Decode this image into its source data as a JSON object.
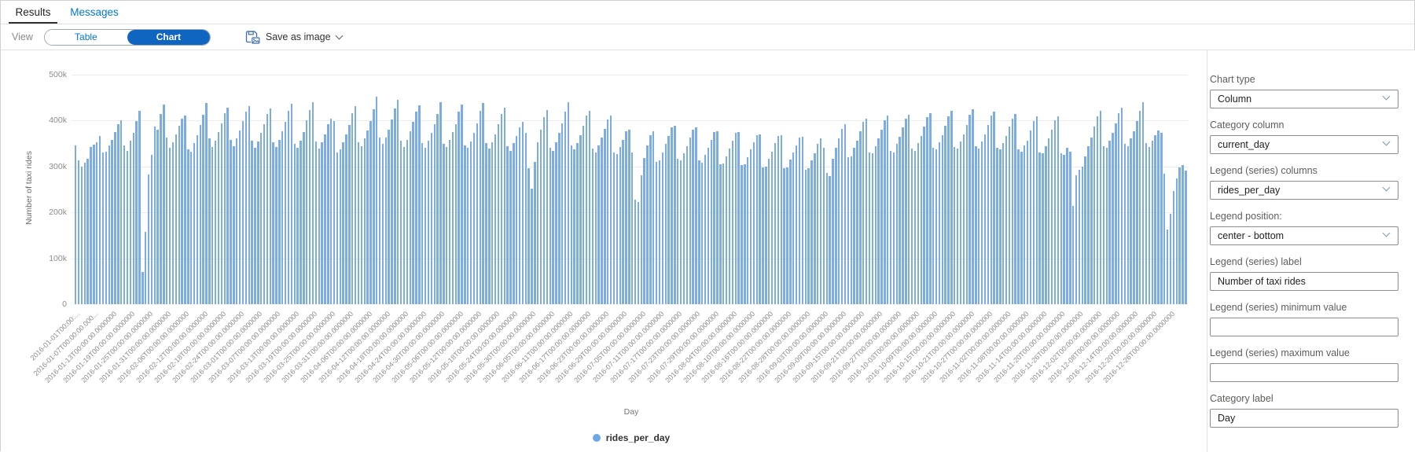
{
  "tabs": {
    "results": "Results",
    "messages": "Messages"
  },
  "toolbar": {
    "view_label": "View",
    "table_label": "Table",
    "chart_label": "Chart",
    "save_as_image_label": "Save as image",
    "icons": {
      "save_image": "save-image-icon",
      "dropdown": "chevron-down-icon"
    },
    "active_view": "Chart",
    "accent_color": "#0078d4",
    "selected_pill_color": "#1065c0"
  },
  "panel": {
    "fields": [
      {
        "label": "Chart type",
        "type": "dropdown",
        "value": "Column"
      },
      {
        "label": "Category column",
        "type": "dropdown",
        "value": "current_day"
      },
      {
        "label": "Legend (series) columns",
        "type": "dropdown",
        "value": "rides_per_day"
      },
      {
        "label": "Legend position:",
        "type": "dropdown",
        "value": "center - bottom"
      },
      {
        "label": "Legend (series) label",
        "type": "input",
        "value": "Number of taxi rides"
      },
      {
        "label": "Legend (series) minimum value",
        "type": "input",
        "value": ""
      },
      {
        "label": "Legend (series) maximum value",
        "type": "input",
        "value": ""
      },
      {
        "label": "Category label",
        "type": "input",
        "value": "Day"
      }
    ]
  },
  "chart_data": {
    "type": "bar",
    "title": "",
    "xlabel": "Day",
    "ylabel": "Number of taxi rides",
    "series_name": "rides_per_day",
    "bar_color": "#7cace4",
    "grid": true,
    "ylim": [
      0,
      500000
    ],
    "y_tick_labels": [
      "0",
      "100k",
      "200k",
      "300k",
      "400k",
      "500k"
    ],
    "x_start_date": "2016-01-01",
    "x_end_date": "2016-12-31",
    "x_tick_interval_days": 6,
    "x_tick_labels": [
      "2016-01-01T00:00:...",
      "2016-01-07T00:00:00.000...",
      "2016-01-13T00:00:00.0000000",
      "2016-01-19T00:00:00.0000000",
      "2016-01-25T00:00:00.0000000",
      "2016-01-31T00:00:00.0000000",
      "2016-02-06T00:00:00.0000000",
      "2016-02-12T00:00:00.0000000",
      "2016-02-18T00:00:00.0000000",
      "2016-02-24T00:00:00.0000000",
      "2016-03-01T00:00:00.0000000",
      "2016-03-07T00:00:00.0000000",
      "2016-03-13T00:00:00.0000000",
      "2016-03-19T00:00:00.0000000",
      "2016-03-25T00:00:00.0000000",
      "2016-03-31T00:00:00.0000000",
      "2016-04-06T00:00:00.0000000",
      "2016-04-12T00:00:00.0000000",
      "2016-04-18T00:00:00.0000000",
      "2016-04-24T00:00:00.0000000",
      "2016-04-30T00:00:00.0000000",
      "2016-05-06T00:00:00.0000000",
      "2016-05-12T00:00:00.0000000",
      "2016-05-18T00:00:00.0000000",
      "2016-05-24T00:00:00.0000000",
      "2016-05-30T00:00:00.0000000",
      "2016-06-05T00:00:00.0000000",
      "2016-06-11T00:00:00.0000000",
      "2016-06-17T00:00:00.0000000",
      "2016-06-23T00:00:00.0000000",
      "2016-06-29T00:00:00.0000000",
      "2016-07-05T00:00:00.0000000",
      "2016-07-11T00:00:00.0000000",
      "2016-07-17T00:00:00.0000000",
      "2016-07-23T00:00:00.0000000",
      "2016-07-29T00:00:00.0000000",
      "2016-08-04T00:00:00.0000000",
      "2016-08-10T00:00:00.0000000",
      "2016-08-16T00:00:00.0000000",
      "2016-08-22T00:00:00.0000000",
      "2016-08-28T00:00:00.0000000",
      "2016-09-03T00:00:00.0000000",
      "2016-09-09T00:00:00.0000000",
      "2016-09-15T00:00:00.0000000",
      "2016-09-21T00:00:00.0000000",
      "2016-09-27T00:00:00.0000000",
      "2016-10-03T00:00:00.0000000",
      "2016-10-09T00:00:00.0000000",
      "2016-10-15T00:00:00.0000000",
      "2016-10-21T00:00:00.0000000",
      "2016-10-27T00:00:00.0000000",
      "2016-11-02T00:00:00.0000000",
      "2016-11-08T00:00:00.0000000",
      "2016-11-14T00:00:00.0000000",
      "2016-11-20T00:00:00.0000000",
      "2016-11-26T00:00:00.0000000",
      "2016-12-02T00:00:00.0000000",
      "2016-12-08T00:00:00.0000000",
      "2016-12-14T00:00:00.0000000",
      "2016-12-20T00:00:00.0000000",
      "2016-12-26T00:00:00.0000000"
    ],
    "values_unit": "thousands of taxi rides per day (estimated from chart)",
    "values": [
      345,
      312,
      300,
      307,
      316,
      342,
      347,
      352,
      366,
      330,
      332,
      346,
      358,
      375,
      392,
      400,
      345,
      333,
      356,
      372,
      398,
      420,
      70,
      158,
      282,
      325,
      386,
      380,
      414,
      435,
      362,
      340,
      352,
      370,
      388,
      404,
      410,
      336,
      332,
      350,
      368,
      390,
      412,
      438,
      360,
      342,
      356,
      374,
      394,
      416,
      428,
      358,
      344,
      360,
      378,
      398,
      418,
      430,
      356,
      340,
      354,
      372,
      392,
      414,
      426,
      352,
      342,
      358,
      376,
      396,
      420,
      436,
      348,
      340,
      356,
      374,
      400,
      422,
      440,
      354,
      338,
      352,
      370,
      392,
      404,
      398,
      330,
      336,
      352,
      370,
      390,
      416,
      430,
      352,
      344,
      360,
      378,
      398,
      424,
      452,
      362,
      348,
      362,
      380,
      402,
      426,
      444,
      356,
      342,
      358,
      376,
      396,
      418,
      432,
      350,
      340,
      356,
      372,
      392,
      414,
      440,
      348,
      342,
      358,
      374,
      392,
      418,
      434,
      346,
      340,
      354,
      372,
      394,
      420,
      438,
      350,
      338,
      352,
      370,
      392,
      414,
      428,
      344,
      334,
      350,
      366,
      384,
      396,
      372,
      295,
      252,
      310,
      352,
      380,
      406,
      422,
      340,
      334,
      352,
      372,
      394,
      418,
      440,
      346,
      336,
      350,
      368,
      388,
      410,
      420,
      338,
      330,
      346,
      362,
      382,
      402,
      410,
      330,
      326,
      342,
      358,
      376,
      380,
      330,
      228,
      222,
      280,
      318,
      346,
      368,
      376,
      310,
      312,
      330,
      348,
      366,
      384,
      388,
      316,
      312,
      328,
      344,
      362,
      380,
      384,
      312,
      308,
      324,
      340,
      358,
      374,
      376,
      304,
      306,
      322,
      338,
      356,
      372,
      374,
      302,
      304,
      320,
      336,
      352,
      368,
      370,
      298,
      300,
      316,
      332,
      350,
      366,
      368,
      296,
      298,
      314,
      330,
      346,
      362,
      364,
      292,
      296,
      312,
      328,
      348,
      360,
      340,
      286,
      278,
      316,
      340,
      360,
      382,
      392,
      320,
      322,
      340,
      356,
      376,
      396,
      404,
      330,
      328,
      344,
      360,
      380,
      400,
      410,
      334,
      330,
      348,
      364,
      384,
      404,
      412,
      338,
      334,
      350,
      366,
      386,
      406,
      416,
      340,
      336,
      352,
      368,
      388,
      408,
      420,
      342,
      338,
      354,
      370,
      390,
      412,
      424,
      344,
      338,
      354,
      370,
      390,
      410,
      418,
      340,
      336,
      350,
      366,
      386,
      404,
      414,
      336,
      332,
      346,
      356,
      378,
      398,
      408,
      330,
      328,
      344,
      360,
      380,
      400,
      408,
      328,
      324,
      340,
      332,
      214,
      280,
      292,
      300,
      322,
      344,
      362,
      386,
      408,
      420,
      344,
      340,
      356,
      372,
      394,
      416,
      428,
      348,
      344,
      360,
      376,
      398,
      420,
      440,
      350,
      342,
      356,
      368,
      378,
      372,
      284,
      162,
      196,
      246,
      274,
      298,
      302,
      290
    ],
    "legend": {
      "position": "center-bottom",
      "items": [
        {
          "label": "rides_per_day",
          "color": "#7cace4"
        }
      ]
    }
  }
}
